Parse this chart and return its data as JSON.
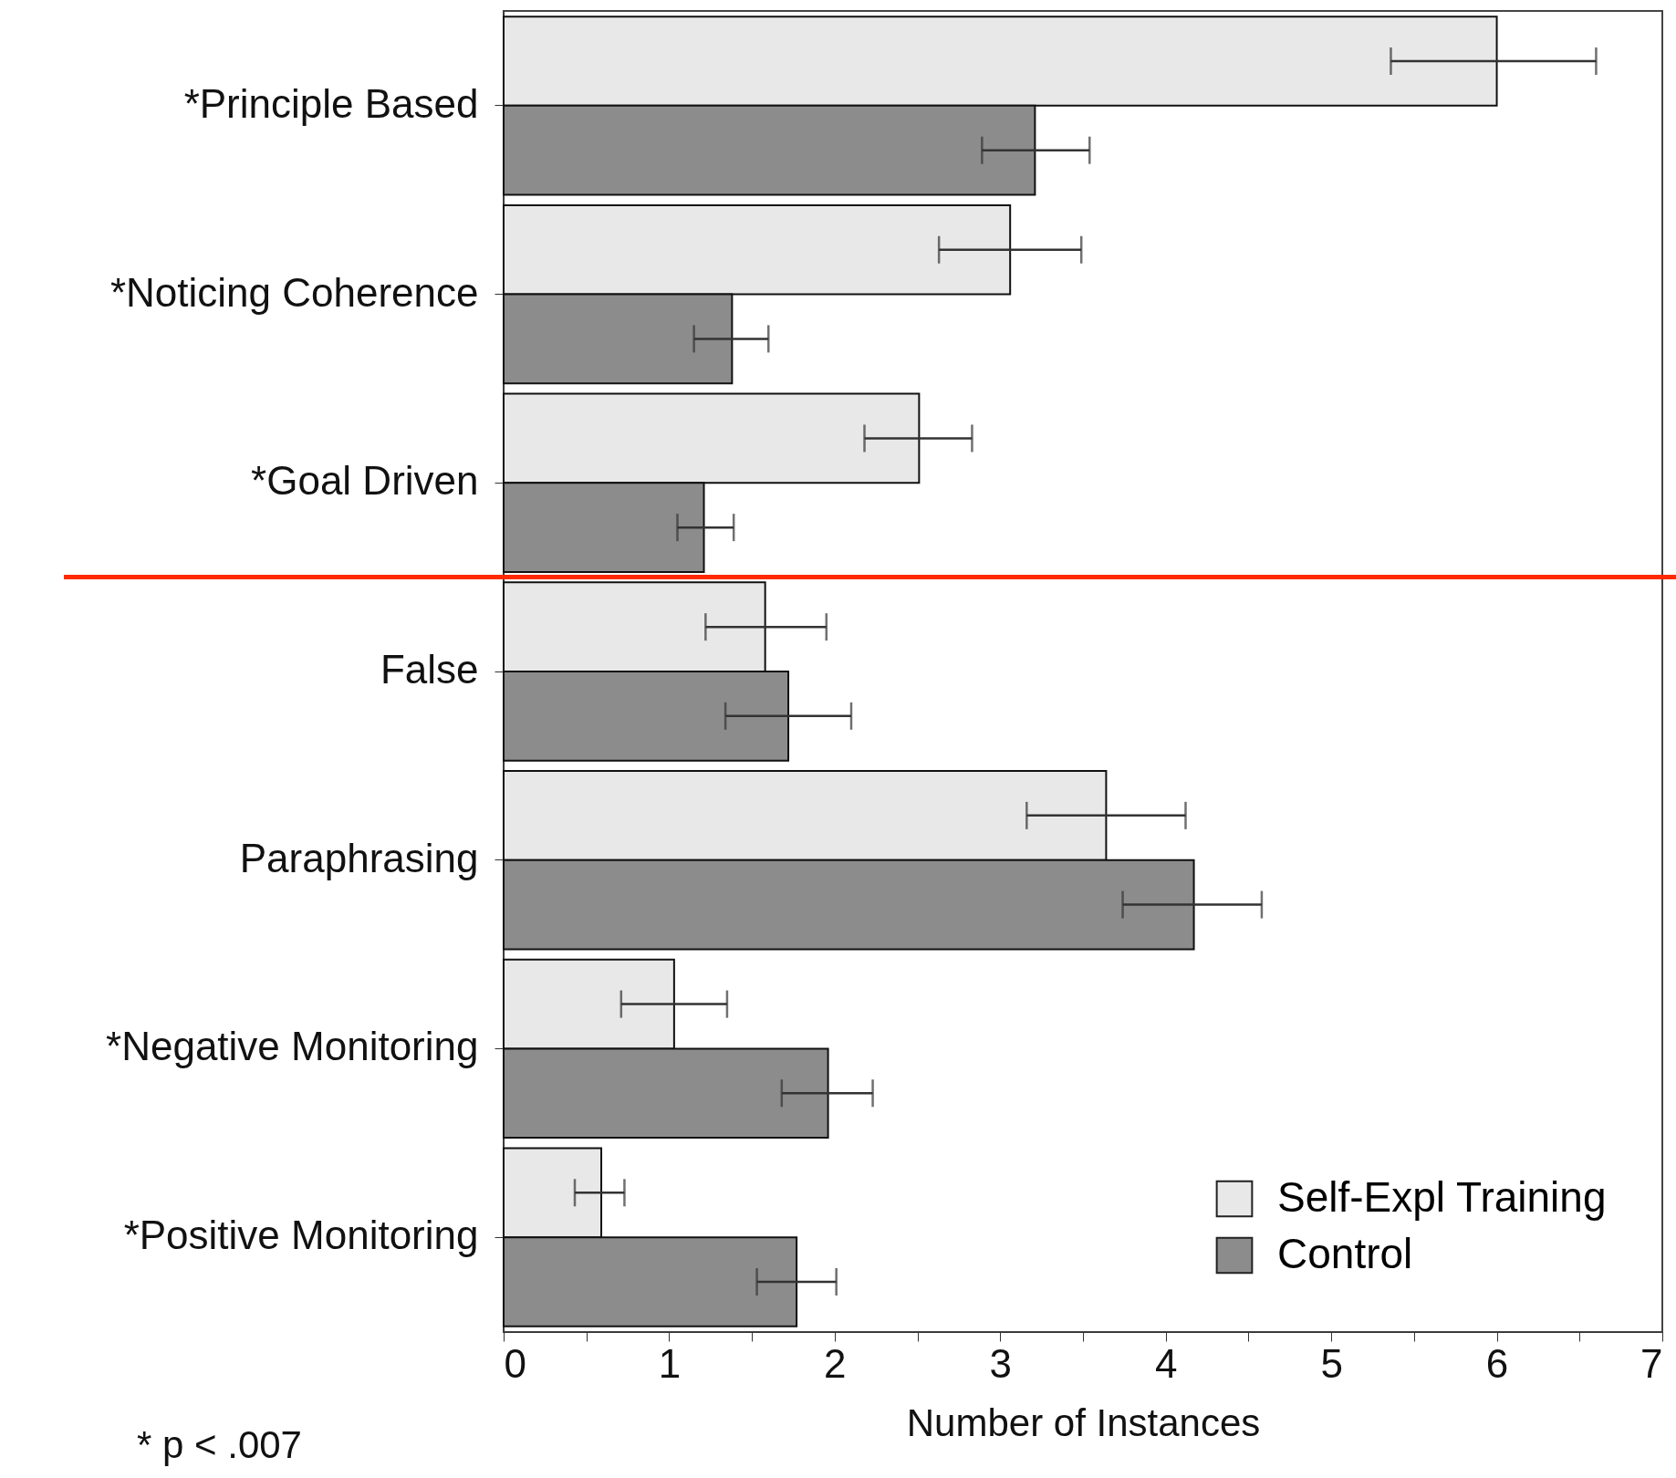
{
  "chart_data": {
    "type": "bar",
    "orientation": "horizontal",
    "xlabel": "Number of Instances",
    "categories": [
      "*Principle Based",
      "*Noticing Coherence",
      "*Goal Driven",
      "False",
      "Paraphrasing",
      "*Negative Monitoring",
      "*Positive Monitoring"
    ],
    "series": [
      {
        "name": "Self-Expl Training",
        "color": "#e8e8e8",
        "values": [
          6.0,
          3.06,
          2.51,
          1.58,
          3.64,
          1.03,
          0.59
        ],
        "errors": [
          [
            5.36,
            6.6
          ],
          [
            2.63,
            3.49
          ],
          [
            2.18,
            2.83
          ],
          [
            1.22,
            1.95
          ],
          [
            3.16,
            4.12
          ],
          [
            0.71,
            1.35
          ],
          [
            0.43,
            0.73
          ]
        ]
      },
      {
        "name": "Control",
        "color": "#8c8c8c",
        "values": [
          3.21,
          1.38,
          1.21,
          1.72,
          4.17,
          1.96,
          1.77
        ],
        "errors": [
          [
            2.89,
            3.54
          ],
          [
            1.15,
            1.6
          ],
          [
            1.05,
            1.39
          ],
          [
            1.34,
            2.1
          ],
          [
            3.74,
            4.58
          ],
          [
            1.68,
            2.23
          ],
          [
            1.53,
            2.01
          ]
        ]
      }
    ],
    "xlim": [
      0,
      7
    ],
    "xticks": [
      0,
      {
        "value": 0.5,
        "label": null
      },
      1,
      {
        "value": 1.5,
        "label": null
      },
      2,
      {
        "value": 2.5,
        "label": null
      },
      3,
      {
        "value": 3.5,
        "label": null
      },
      4,
      {
        "value": 4.5,
        "label": null
      },
      5,
      {
        "value": 5.5,
        "label": null
      },
      6,
      {
        "value": 6.5,
        "label": null
      },
      7
    ],
    "grid": false,
    "legend": "bottom right",
    "ref_lines": [
      {
        "axis": "y",
        "value": "False",
        "color": "#ff2a00",
        "line_style": "solid"
      }
    ],
    "annotations": [
      "* p < .007"
    ]
  }
}
